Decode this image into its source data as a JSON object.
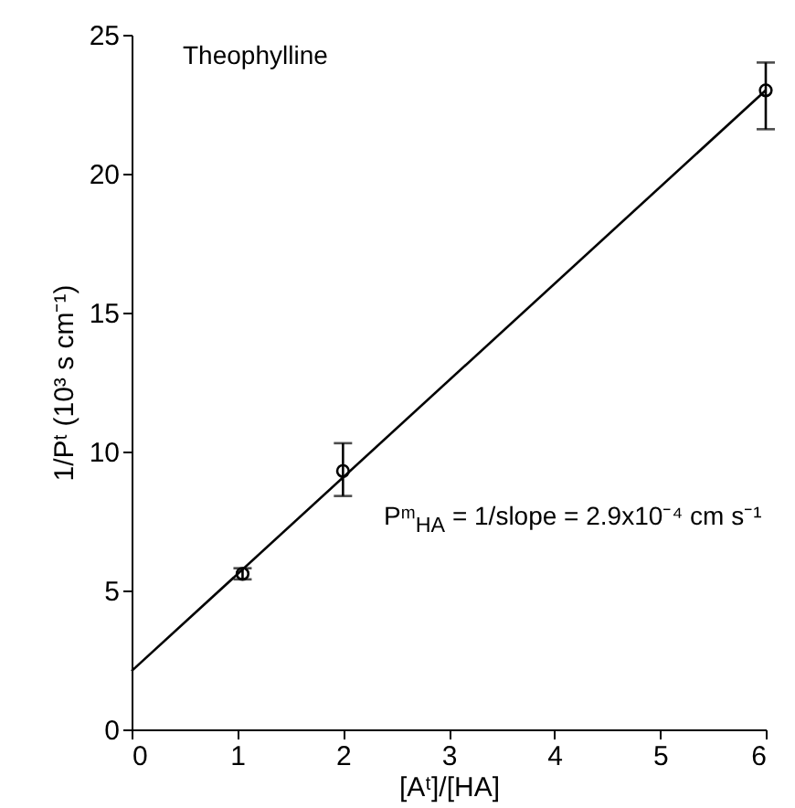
{
  "chart_data": {
    "type": "scatter",
    "xlabel": "[Aᵗ]/[HA]",
    "ylabel": "1/Pᵗ (10³ s cm⁻¹)",
    "annotations": [
      "Theophylline",
      "Pᵐ$_{HA}$ = 1/slope = 2.9x10⁻⁴ cm s⁻¹"
    ],
    "xlim": [
      0,
      6
    ],
    "ylim": [
      0,
      25
    ],
    "xticks": [
      0,
      1,
      2,
      3,
      4,
      5,
      6
    ],
    "yticks": [
      0,
      5,
      10,
      15,
      20,
      25
    ],
    "series": [
      {
        "marker": "circle",
        "color": "#000000",
        "x": [
          1.05,
          2,
          6
        ],
        "values": [
          5.6,
          9.3,
          23.0
        ],
        "errors": [
          0.2,
          [
            8.4,
            10.3
          ],
          [
            21.6,
            24.0
          ]
        ]
      },
      {
        "type": "line",
        "color": "#000000",
        "x": [
          0,
          6
        ],
        "values": [
          2.1,
          23.0
        ]
      }
    ]
  }
}
